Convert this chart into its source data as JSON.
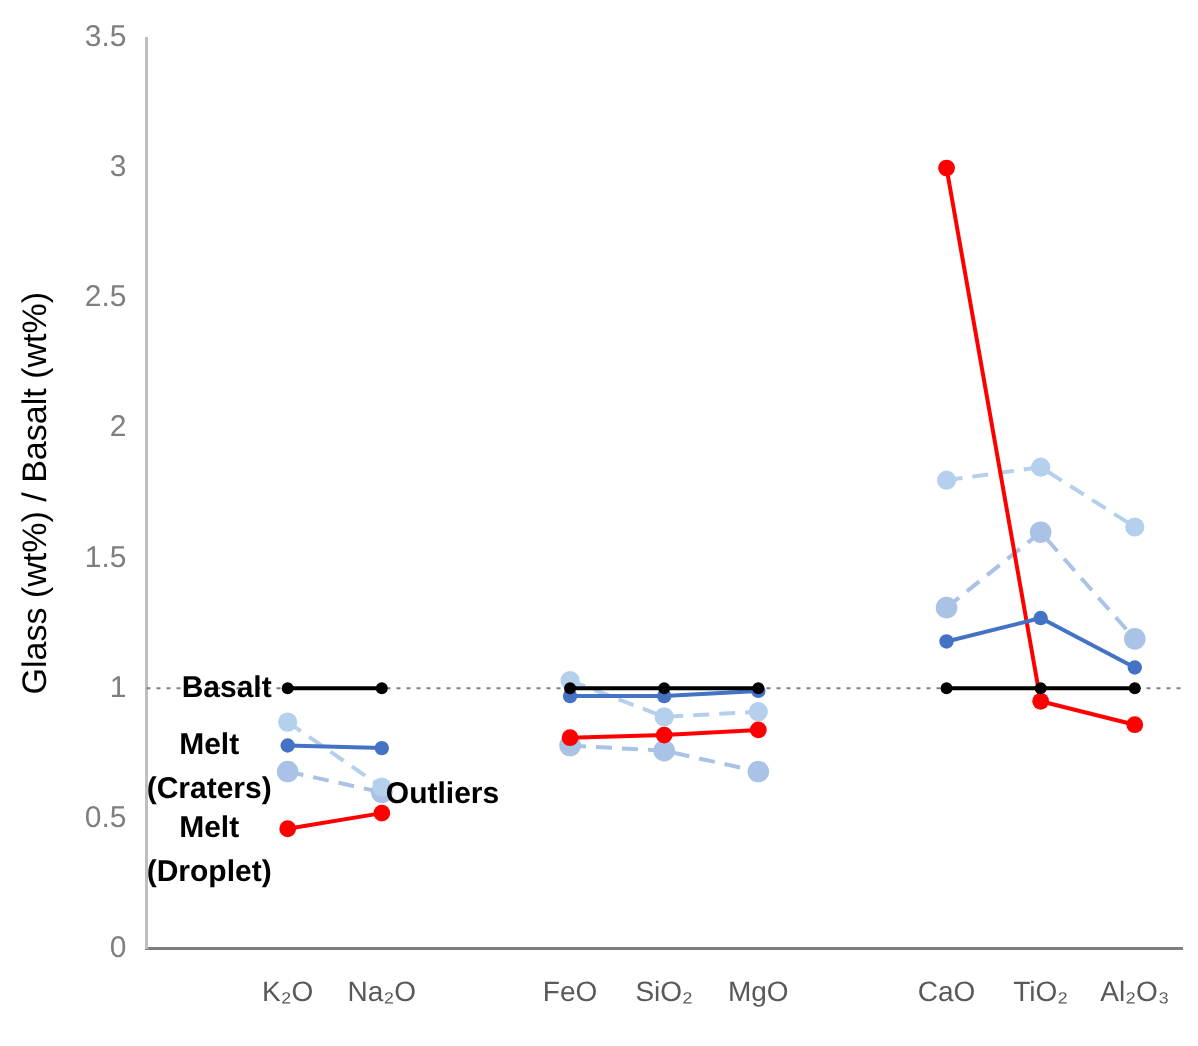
{
  "chart_data": {
    "type": "line",
    "ylabel": "Glass (wt%) / Basalt (wt%)",
    "categories": [
      null,
      "K₂O",
      "Na₂O",
      null,
      "FeO",
      "SiO₂",
      "MgO",
      null,
      "CaO",
      "TiO₂",
      "Al₂O₃"
    ],
    "series": [
      {
        "name": "Basalt",
        "color": "#000000",
        "line_style": "solid",
        "values": [
          null,
          1,
          1,
          null,
          1,
          1,
          1,
          null,
          1,
          1,
          1
        ]
      },
      {
        "name": "Melt (Craters)",
        "color": "#4472c4",
        "line_style": "solid",
        "values": [
          null,
          0.78,
          0.77,
          null,
          0.97,
          0.97,
          0.99,
          null,
          1.18,
          1.27,
          1.08
        ]
      },
      {
        "name": "Melt (Droplet)",
        "color": "#ff0000",
        "line_style": "solid",
        "values": [
          null,
          0.46,
          0.52,
          null,
          0.81,
          0.82,
          0.84,
          null,
          3.0,
          0.95,
          0.86
        ]
      },
      {
        "name": "Outliers",
        "color": "#b4d0ec",
        "line_style": "dashed",
        "values": [
          null,
          0.87,
          0.62,
          null,
          1.03,
          0.89,
          0.91,
          null,
          1.8,
          1.85,
          1.62
        ]
      },
      {
        "color": "#a9c2e6",
        "line_style": "dashed",
        "values": [
          null,
          0.68,
          0.6,
          null,
          0.78,
          0.76,
          0.68,
          null,
          1.31,
          1.6,
          1.19
        ]
      }
    ],
    "ylim": [
      0,
      3.5
    ],
    "yticks": [
      0,
      0.5,
      1,
      1.5,
      2,
      2.5,
      3,
      3.5
    ],
    "ref_lines": [
      {
        "axis": "y",
        "value": 1,
        "color": "#808080",
        "line_style": "dotted"
      }
    ],
    "marker": "circle",
    "grid": false,
    "legend": false
  }
}
